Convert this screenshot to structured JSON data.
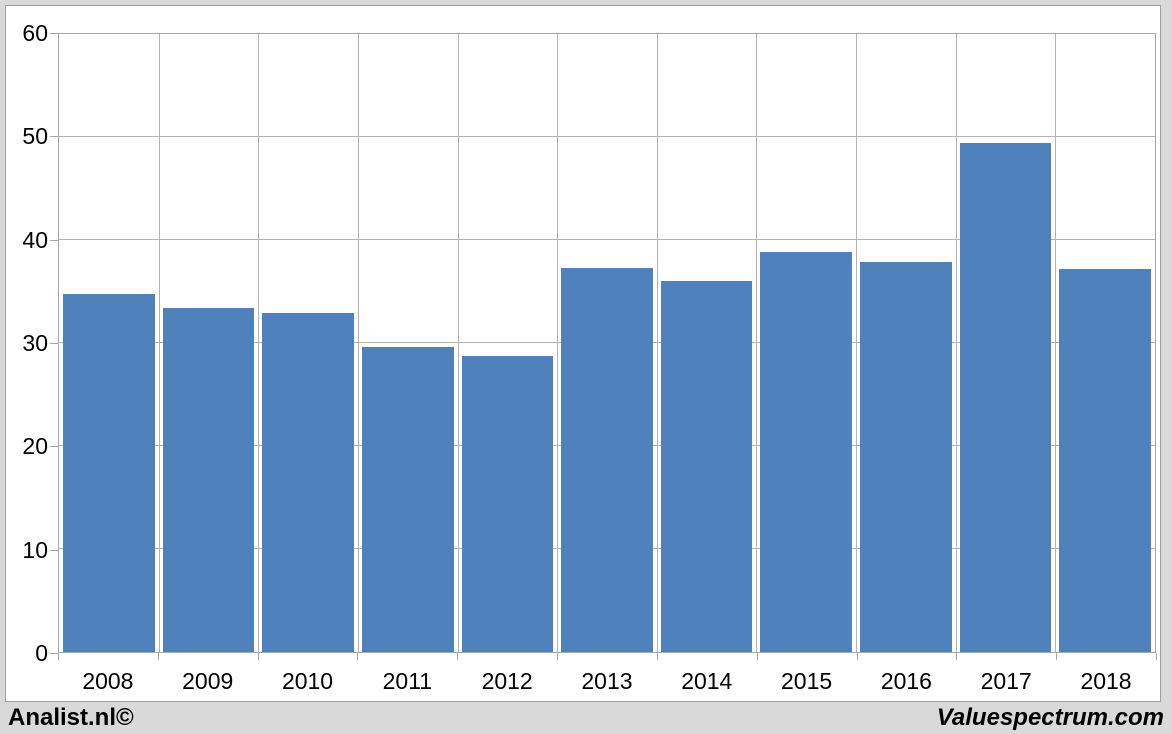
{
  "chart_data": {
    "type": "bar",
    "categories": [
      "2008",
      "2009",
      "2010",
      "2011",
      "2012",
      "2013",
      "2014",
      "2015",
      "2016",
      "2017",
      "2018"
    ],
    "values": [
      34.8,
      33.4,
      32.9,
      29.6,
      28.7,
      37.3,
      36.0,
      38.8,
      37.9,
      49.4,
      37.2
    ],
    "title": "",
    "xlabel": "",
    "ylabel": "",
    "ylim": [
      0,
      60
    ],
    "yticks": [
      0,
      10,
      20,
      30,
      40,
      50,
      60
    ],
    "grid": true,
    "legend": false,
    "bar_color": "#4F81BD",
    "gridline_color": "#b3b3b3",
    "axis_color": "#a6a6a6",
    "plot_background": "#ffffff",
    "page_background": "#d9d9d9",
    "text_color": "#000000"
  },
  "footer": {
    "left": "Analist.nl©",
    "right": "Valuespectrum.com"
  }
}
